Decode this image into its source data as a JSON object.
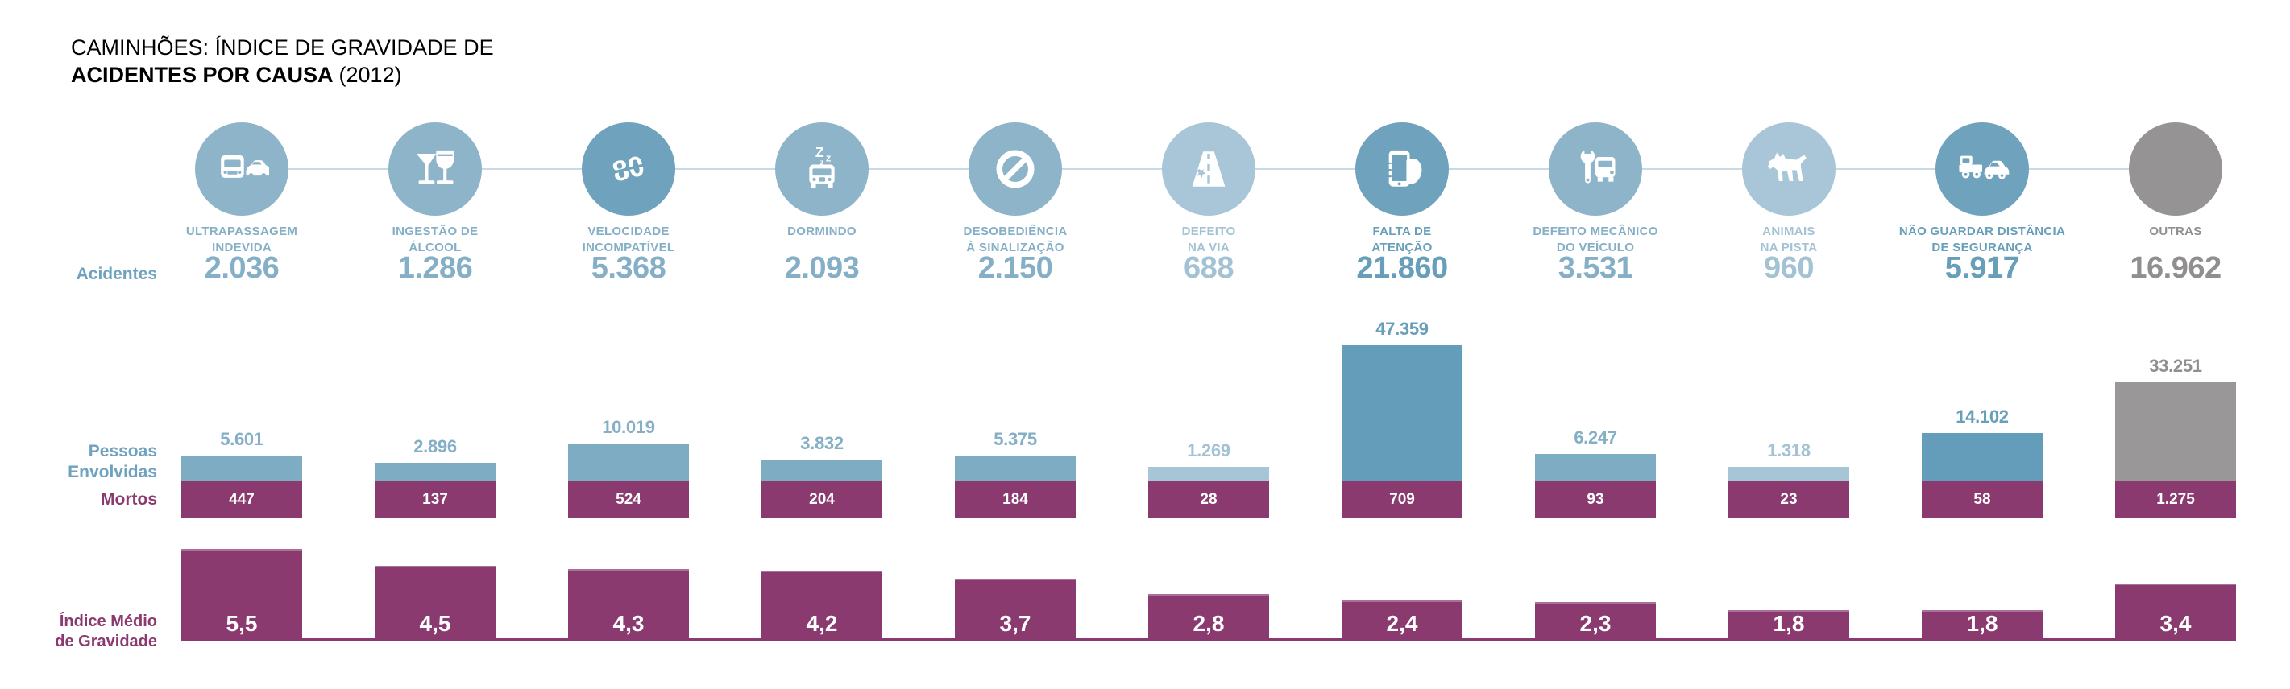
{
  "title": {
    "line1": "CAMINHÕES: ÍNDICE DE GRAVIDADE DE",
    "line2_bold": "ACIDENTES POR CAUSA",
    "line2_year": "(2012)"
  },
  "row_labels": {
    "acidentes": "Acidentes",
    "pessoas": [
      "Pessoas",
      "Envolvidas"
    ],
    "mortos": "Mortos",
    "gravidade": [
      "Índice Médio",
      "de Gravidade"
    ]
  },
  "palette": {
    "circle": {
      "light": "#A8C6D7",
      "medium": "#8DB4C8",
      "dark": "#6FA2BC",
      "gray": "#969394"
    },
    "bar": {
      "light": "#A6C5D7",
      "medium": "#7EACC3",
      "dark": "#639DB9",
      "gray": "#9A9798"
    },
    "text": {
      "light": "#A3C3D5",
      "medium": "#85AFC6",
      "dark": "#679EBA",
      "gray": "#908E8F"
    },
    "purple": "#8B3A6F",
    "row_label_blue": "#6FA2BF",
    "connector": "#C6DBE5",
    "title_color": "#000000",
    "bar_value_white": "#FFFFFF"
  },
  "columns": [
    {
      "id": "ultrapassagem-indevida",
      "label_lines": [
        "ULTRAPASSAGEM",
        "INDEVIDA"
      ],
      "icon": "truck-overtaking-icon",
      "shade": "medium",
      "circle_shade": "medium",
      "acidentes": "2.036",
      "pessoas": "5.601",
      "pessoas_value": 5601,
      "mortos": "447",
      "gravidade": "5,5",
      "gravidade_value": 5.5
    },
    {
      "id": "ingestao-de-alcool",
      "label_lines": [
        "INGESTÃO DE",
        "ÁLCOOL"
      ],
      "icon": "alcohol-glasses-icon",
      "shade": "medium",
      "circle_shade": "medium",
      "acidentes": "1.286",
      "pessoas": "2.896",
      "pessoas_value": 2896,
      "mortos": "137",
      "gravidade": "4,5",
      "gravidade_value": 4.5
    },
    {
      "id": "velocidade-incompativel",
      "label_lines": [
        "VELOCIDADE",
        "INCOMPATÍVEL"
      ],
      "icon": "speed-80-icon",
      "shade": "medium",
      "circle_shade": "dark",
      "acidentes": "5.368",
      "pessoas": "10.019",
      "pessoas_value": 10019,
      "mortos": "524",
      "gravidade": "4,3",
      "gravidade_value": 4.3
    },
    {
      "id": "dormindo",
      "label_lines": [
        "DORMINDO"
      ],
      "icon": "sleeping-truck-icon",
      "shade": "medium",
      "circle_shade": "medium",
      "acidentes": "2.093",
      "pessoas": "3.832",
      "pessoas_value": 3832,
      "mortos": "204",
      "gravidade": "4,2",
      "gravidade_value": 4.2
    },
    {
      "id": "desobediencia-a-sinalizacao",
      "label_lines": [
        "DESOBEDIÊNCIA",
        "À SINALIZAÇÃO"
      ],
      "icon": "no-entry-icon",
      "shade": "medium",
      "circle_shade": "medium",
      "acidentes": "2.150",
      "pessoas": "5.375",
      "pessoas_value": 5375,
      "mortos": "184",
      "gravidade": "3,7",
      "gravidade_value": 3.7
    },
    {
      "id": "defeito-na-via",
      "label_lines": [
        "DEFEITO",
        "NA VIA"
      ],
      "icon": "road-defect-icon",
      "shade": "light",
      "circle_shade": "light",
      "acidentes": "688",
      "pessoas": "1.269",
      "pessoas_value": 1269,
      "mortos": "28",
      "gravidade": "2,8",
      "gravidade_value": 2.8
    },
    {
      "id": "falta-de-atencao",
      "label_lines": [
        "FALTA DE",
        "ATENÇÃO"
      ],
      "icon": "phone-hand-icon",
      "shade": "dark",
      "circle_shade": "dark",
      "acidentes": "21.860",
      "pessoas": "47.359",
      "pessoas_value": 47359,
      "mortos": "709",
      "gravidade": "2,4",
      "gravidade_value": 2.4
    },
    {
      "id": "defeito-mecanico-do-veiculo",
      "label_lines": [
        "DEFEITO MECÂNICO",
        "DO VEÍCULO"
      ],
      "icon": "wrench-truck-icon",
      "shade": "medium",
      "circle_shade": "medium",
      "acidentes": "3.531",
      "pessoas": "6.247",
      "pessoas_value": 6247,
      "mortos": "93",
      "gravidade": "2,3",
      "gravidade_value": 2.3
    },
    {
      "id": "animais-na-pista",
      "label_lines": [
        "ANIMAIS",
        "NA PISTA"
      ],
      "icon": "dog-icon",
      "shade": "light",
      "circle_shade": "light",
      "acidentes": "960",
      "pessoas": "1.318",
      "pessoas_value": 1318,
      "mortos": "23",
      "gravidade": "1,8",
      "gravidade_value": 1.8
    },
    {
      "id": "nao-guardar-distancia-de-seguranca",
      "label_lines": [
        "NÃO GUARDAR DISTÂNCIA",
        "DE SEGURANÇA"
      ],
      "icon": "tailgating-icon",
      "shade": "dark",
      "circle_shade": "dark",
      "acidentes": "5.917",
      "pessoas": "14.102",
      "pessoas_value": 14102,
      "mortos": "58",
      "gravidade": "1,8",
      "gravidade_value": 1.8
    },
    {
      "id": "outras",
      "label_lines": [
        "OUTRAS"
      ],
      "icon": "none",
      "shade": "gray",
      "circle_shade": "gray",
      "acidentes": "16.962",
      "pessoas": "33.251",
      "pessoas_value": 33251,
      "mortos": "1.275",
      "gravidade": "3,4",
      "gravidade_value": 3.4
    }
  ],
  "chart_data": {
    "type": "bar",
    "title": "CAMINHÕES: ÍNDICE DE GRAVIDADE DE ACIDENTES POR CAUSA (2012)",
    "categories": [
      "ULTRAPASSAGEM INDEVIDA",
      "INGESTÃO DE ÁLCOOL",
      "VELOCIDADE INCOMPATÍVEL",
      "DORMINDO",
      "DESOBEDIÊNCIA À SINALIZAÇÃO",
      "DEFEITO NA VIA",
      "FALTA DE ATENÇÃO",
      "DEFEITO MECÂNICO DO VEÍCULO",
      "ANIMAIS NA PISTA",
      "NÃO GUARDAR DISTÂNCIA DE SEGURANÇA",
      "OUTRAS"
    ],
    "series": [
      {
        "name": "Acidentes",
        "values": [
          2036,
          1286,
          5368,
          2093,
          2150,
          688,
          21860,
          3531,
          960,
          5917,
          16962
        ]
      },
      {
        "name": "Pessoas Envolvidas",
        "values": [
          5601,
          2896,
          10019,
          3832,
          5375,
          1269,
          47359,
          6247,
          1318,
          14102,
          33251
        ]
      },
      {
        "name": "Mortos",
        "values": [
          447,
          137,
          524,
          204,
          184,
          28,
          709,
          93,
          23,
          58,
          1275
        ]
      },
      {
        "name": "Índice Médio de Gravidade",
        "values": [
          5.5,
          4.5,
          4.3,
          4.2,
          3.7,
          2.8,
          2.4,
          2.3,
          1.8,
          1.8,
          3.4
        ]
      }
    ],
    "legend_position": "left",
    "grid": false,
    "notes": "Stacked column row: blue = Pessoas Envolvidas (value above bar), purple band = Mortos (value inside, constant band height). Bottom row: purple bars = Índice Médio de Gravidade (value inside). Last category (OUTRAS) rendered in gray."
  }
}
